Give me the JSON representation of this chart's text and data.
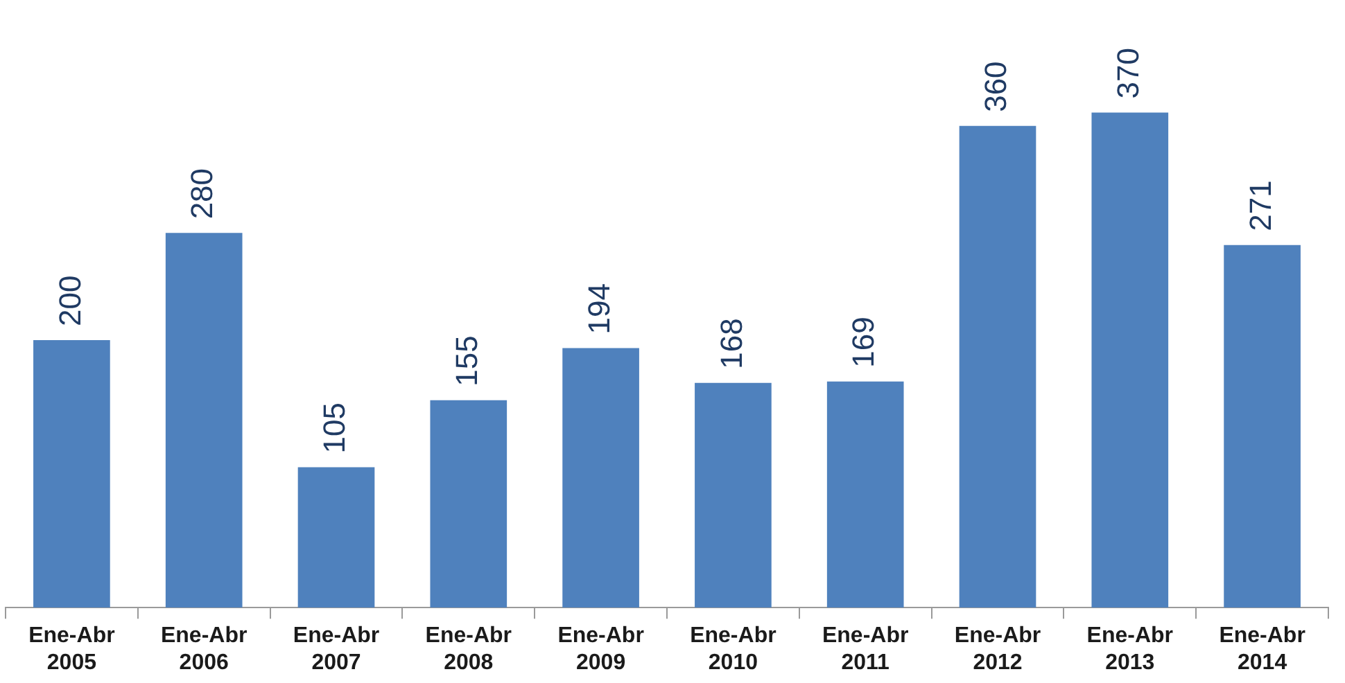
{
  "chart_data": {
    "type": "bar",
    "categories": [
      "Ene-Abr 2005",
      "Ene-Abr 2006",
      "Ene-Abr 2007",
      "Ene-Abr 2008",
      "Ene-Abr 2009",
      "Ene-Abr 2010",
      "Ene-Abr 2011",
      "Ene-Abr 2012",
      "Ene-Abr 2013",
      "Ene-Abr 2014"
    ],
    "values": [
      200,
      280,
      105,
      155,
      194,
      168,
      169,
      360,
      370,
      271
    ],
    "color": "#4f81bd",
    "data_labels": true,
    "grid": false,
    "legend": false,
    "tick_labels": "x"
  }
}
